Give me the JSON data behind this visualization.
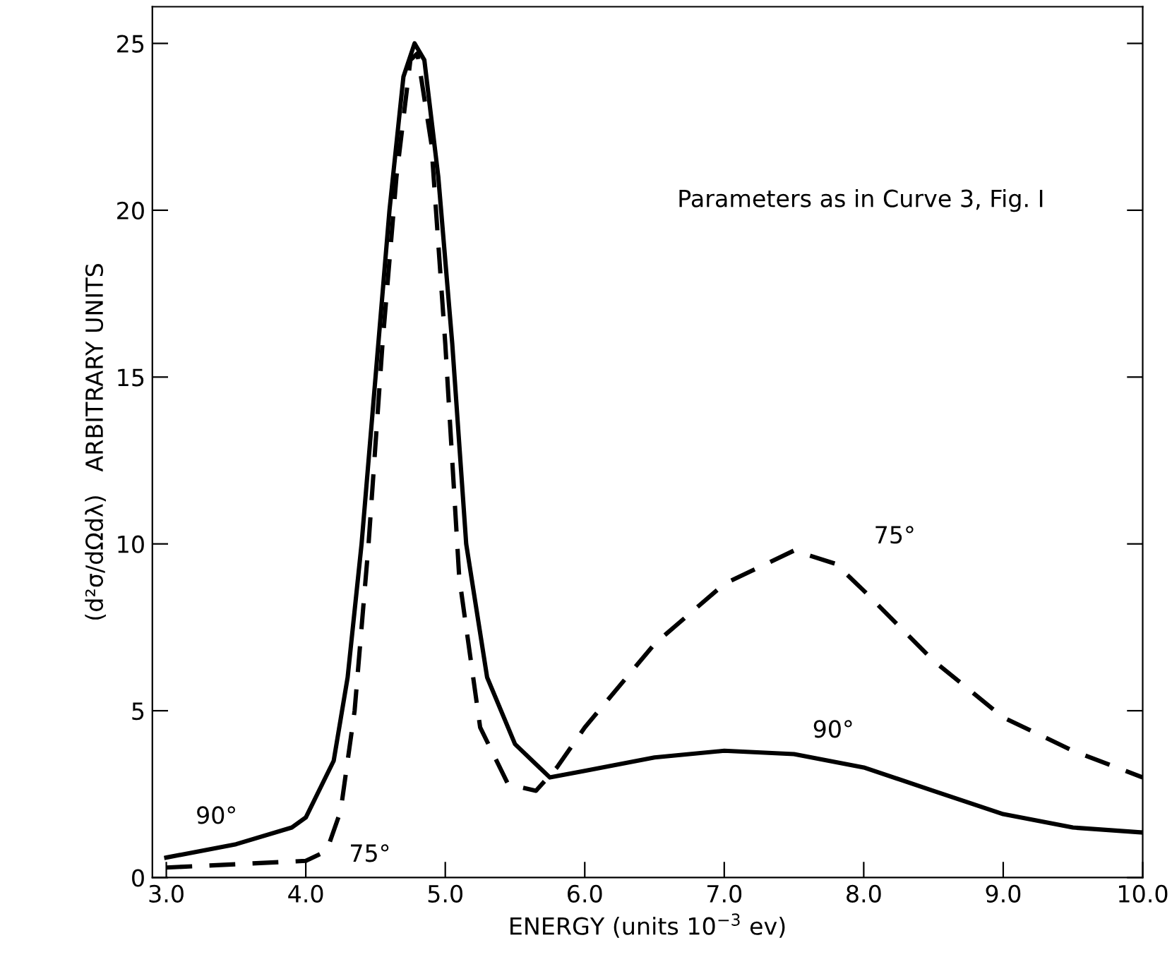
{
  "chart_data": {
    "type": "line",
    "xlabel": "ENERGY (units 10$^{−3}$ ev)",
    "ylabel": "(d²σ/dΩdλ)   ARBITRARY UNITS",
    "xlim": [
      2.9,
      10.0
    ],
    "ylim": [
      0,
      26.1
    ],
    "xticks": [
      {
        "value": 3,
        "label": "3.0"
      },
      {
        "value": 4,
        "label": "4.0"
      },
      {
        "value": 5,
        "label": "5.0"
      },
      {
        "value": 6,
        "label": "6.0"
      },
      {
        "value": 7,
        "label": "7.0"
      },
      {
        "value": 8,
        "label": "8.0"
      },
      {
        "value": 9,
        "label": "9.0"
      },
      {
        "value": 10,
        "label": "10.0"
      }
    ],
    "yticks": [
      0,
      5,
      10,
      15,
      20,
      25
    ],
    "grid": false,
    "legend": false,
    "series": [
      {
        "name": "90°",
        "color": "#000000",
        "line_style": "solid",
        "x": [
          3.0,
          3.5,
          3.9,
          4.0,
          4.2,
          4.3,
          4.4,
          4.5,
          4.6,
          4.7,
          4.78,
          4.85,
          4.95,
          5.05,
          5.15,
          5.3,
          5.5,
          5.75,
          6.0,
          6.5,
          7.0,
          7.5,
          8.0,
          8.5,
          9.0,
          9.5,
          10.0
        ],
        "values": [
          0.6,
          1.0,
          1.5,
          1.8,
          3.5,
          6,
          10,
          15,
          20,
          24,
          25,
          24.5,
          21,
          16,
          10,
          6,
          4,
          3.0,
          3.2,
          3.6,
          3.8,
          3.7,
          3.3,
          2.6,
          1.9,
          1.5,
          1.35
        ]
      },
      {
        "name": "75°",
        "color": "#000000",
        "line_style": "dashed",
        "x": [
          3.0,
          3.5,
          4.0,
          4.15,
          4.25,
          4.35,
          4.45,
          4.55,
          4.65,
          4.75,
          4.8,
          4.9,
          5.0,
          5.1,
          5.25,
          5.45,
          5.65,
          5.8,
          6.0,
          6.5,
          7.0,
          7.5,
          7.8,
          8.0,
          8.5,
          9.0,
          9.5,
          10.0
        ],
        "values": [
          0.3,
          0.4,
          0.5,
          0.8,
          2.0,
          5,
          10,
          16,
          21,
          24.5,
          24.7,
          22,
          16,
          9,
          4.5,
          2.8,
          2.6,
          3.3,
          4.5,
          7.0,
          8.8,
          9.8,
          9.4,
          8.6,
          6.5,
          4.8,
          3.8,
          3.0
        ]
      }
    ],
    "annotations": [
      "Parameters as in Curve 3, Fig. I"
    ]
  }
}
